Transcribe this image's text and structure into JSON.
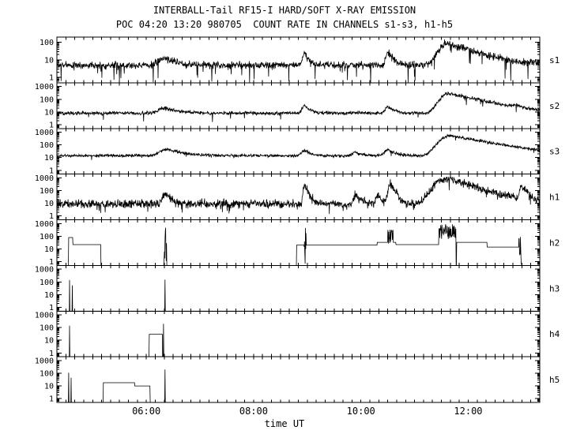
{
  "chart_data": {
    "type": "line",
    "yscale": "log",
    "title": "INTERBALL-Tail RF15-I HARD/SOFT X-RAY EMISSION",
    "subtitle": "POC 04:20 13:20 980705  COUNT RATE IN CHANNELS s1-s3, h1-h5",
    "xlabel": "time UT",
    "ylabel": "",
    "background": "#ffffff",
    "axis_color": "#000000",
    "x_range": [
      4.3333,
      13.3333
    ],
    "x_minor_step_hours": 0.1666667,
    "x_tick_labels": [
      {
        "t": 6,
        "label": "06:00"
      },
      {
        "t": 8,
        "label": "08:00"
      },
      {
        "t": 10,
        "label": "10:00"
      },
      {
        "t": 12,
        "label": "12:00"
      }
    ],
    "panels": [
      {
        "name": "s1",
        "ylim": [
          0.5,
          200
        ],
        "yticks": [
          100,
          10,
          1
        ],
        "baseline": 5,
        "noise": 0.1,
        "drop_prob": 0.05,
        "drop_depth": 1.1,
        "events": [
          {
            "t": 6.35,
            "peak": 8,
            "rise": 0.1,
            "decay": 0.2
          },
          {
            "t": 8.95,
            "peak": 18,
            "rise": 0.03,
            "decay": 0.07
          },
          {
            "t": 10.5,
            "peak": 22,
            "rise": 0.03,
            "decay": 0.08
          },
          {
            "t": 11.62,
            "peak": 85,
            "rise": 0.12,
            "decay": 0.4
          }
        ]
      },
      {
        "name": "s2",
        "ylim": [
          0.5,
          2000
        ],
        "yticks": [
          1000,
          100,
          10,
          1
        ],
        "baseline": 8,
        "noise": 0.07,
        "drop_prob": 0.015,
        "drop_depth": 0.7,
        "events": [
          {
            "t": 6.35,
            "peak": 12,
            "rise": 0.1,
            "decay": 0.2
          },
          {
            "t": 8.95,
            "peak": 22,
            "rise": 0.04,
            "decay": 0.09
          },
          {
            "t": 10.5,
            "peak": 18,
            "rise": 0.04,
            "decay": 0.1
          },
          {
            "t": 11.65,
            "peak": 280,
            "rise": 0.12,
            "decay": 0.45
          },
          {
            "t": 12.9,
            "peak": 12,
            "rise": 0.04,
            "decay": 0.08
          }
        ]
      },
      {
        "name": "s3",
        "ylim": [
          0.5,
          2000
        ],
        "yticks": [
          1000,
          100,
          10,
          1
        ],
        "baseline": 14,
        "noise": 0.06,
        "drop_prob": 0.01,
        "drop_depth": 0.5,
        "events": [
          {
            "t": 6.4,
            "peak": 30,
            "rise": 0.12,
            "decay": 0.25
          },
          {
            "t": 8.95,
            "peak": 22,
            "rise": 0.05,
            "decay": 0.1
          },
          {
            "t": 9.9,
            "peak": 12,
            "rise": 0.05,
            "decay": 0.12
          },
          {
            "t": 10.5,
            "peak": 28,
            "rise": 0.05,
            "decay": 0.12
          },
          {
            "t": 11.68,
            "peak": 520,
            "rise": 0.15,
            "decay": 0.55
          }
        ]
      },
      {
        "name": "h1",
        "ylim": [
          0.5,
          2000
        ],
        "yticks": [
          1000,
          100,
          10,
          1
        ],
        "baseline": 9,
        "noise": 0.16,
        "drop_prob": 0.03,
        "drop_depth": 0.7,
        "events": [
          {
            "t": 6.35,
            "peak": 45,
            "rise": 0.04,
            "decay": 0.1
          },
          {
            "t": 8.95,
            "peak": 260,
            "rise": 0.02,
            "decay": 0.05
          },
          {
            "t": 9.9,
            "peak": 35,
            "rise": 0.03,
            "decay": 0.08
          },
          {
            "t": 10.3,
            "peak": 50,
            "rise": 0.02,
            "decay": 0.05
          },
          {
            "t": 10.55,
            "peak": 320,
            "rise": 0.03,
            "decay": 0.06
          },
          {
            "t": 11.6,
            "peak": 850,
            "rise": 0.15,
            "decay": 0.35
          },
          {
            "t": 13.0,
            "peak": 230,
            "rise": 0.03,
            "decay": 0.07
          }
        ]
      },
      {
        "name": "h2",
        "ylim": [
          0.5,
          2000
        ],
        "yticks": [
          1000,
          100,
          10,
          1
        ],
        "baseline": 0.5,
        "noise": 0,
        "floor": true,
        "steps": [
          {
            "t0": 4.55,
            "t1": 4.63,
            "level": 80
          },
          {
            "t0": 4.63,
            "t1": 5.15,
            "level": 22
          },
          {
            "t0": 8.8,
            "t1": 10.3,
            "level": 20
          },
          {
            "t0": 10.3,
            "t1": 10.65,
            "level": 33
          },
          {
            "t0": 10.65,
            "t1": 11.45,
            "level": 22
          },
          {
            "t0": 11.78,
            "t1": 12.35,
            "level": 33
          },
          {
            "t0": 12.35,
            "t1": 12.95,
            "level": 14
          }
        ],
        "bursts": [
          {
            "t0": 6.33,
            "t1": 6.38,
            "lo": 0.5,
            "hi": 900
          },
          {
            "t0": 8.94,
            "t1": 8.98,
            "lo": 0.5,
            "hi": 900
          },
          {
            "t0": 10.5,
            "t1": 10.6,
            "lo": 25,
            "hi": 550
          },
          {
            "t0": 11.45,
            "t1": 11.77,
            "lo": 60,
            "hi": 1000
          },
          {
            "t0": 12.94,
            "t1": 12.99,
            "lo": 0.5,
            "hi": 900
          }
        ]
      },
      {
        "name": "h3",
        "ylim": [
          0.5,
          2000
        ],
        "yticks": [
          1000,
          100,
          10,
          1
        ],
        "baseline": 0.5,
        "noise": 0,
        "floor": true,
        "spikes": [
          {
            "t": 4.57,
            "peak": 140
          },
          {
            "t": 4.62,
            "peak": 55
          },
          {
            "t": 6.35,
            "peak": 150
          }
        ]
      },
      {
        "name": "h4",
        "ylim": [
          0.5,
          2000
        ],
        "yticks": [
          1000,
          100,
          10,
          1
        ],
        "baseline": 0.5,
        "noise": 0,
        "floor": true,
        "steps": [
          {
            "t0": 6.05,
            "t1": 6.3,
            "level": 30
          }
        ],
        "spikes": [
          {
            "t": 4.57,
            "peak": 140
          },
          {
            "t": 6.32,
            "peak": 200
          }
        ]
      },
      {
        "name": "h5",
        "ylim": [
          0.5,
          2000
        ],
        "yticks": [
          1000,
          100,
          10,
          1
        ],
        "baseline": 0.5,
        "noise": 0,
        "floor": true,
        "steps": [
          {
            "t0": 5.2,
            "t1": 5.78,
            "level": 18
          },
          {
            "t0": 5.78,
            "t1": 6.07,
            "level": 10
          }
        ],
        "spikes": [
          {
            "t": 4.55,
            "peak": 110
          },
          {
            "t": 4.6,
            "peak": 45
          },
          {
            "t": 6.35,
            "peak": 200
          }
        ]
      }
    ]
  }
}
